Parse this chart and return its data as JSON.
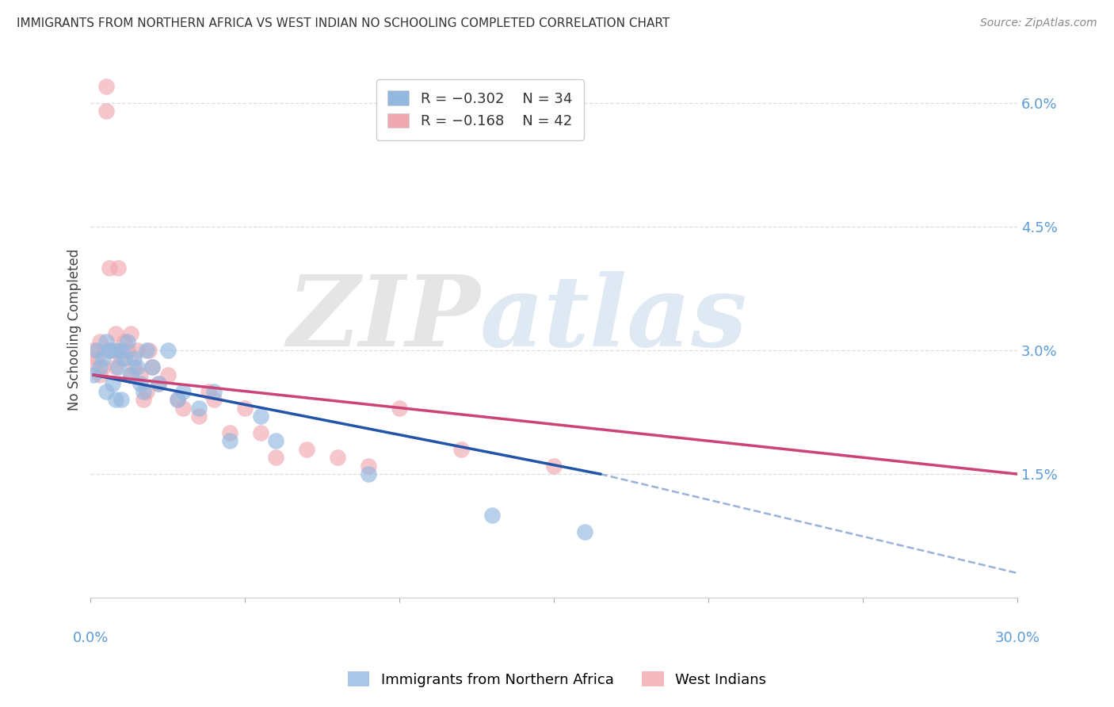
{
  "title": "IMMIGRANTS FROM NORTHERN AFRICA VS WEST INDIAN NO SCHOOLING COMPLETED CORRELATION CHART",
  "source": "Source: ZipAtlas.com",
  "ylabel": "No Schooling Completed",
  "xlim": [
    0.0,
    0.3
  ],
  "ylim": [
    0.0,
    0.065
  ],
  "legend_blue_r": "R = −0.302",
  "legend_blue_n": "N = 34",
  "legend_pink_r": "R = −0.168",
  "legend_pink_n": "N = 42",
  "blue_color": "#92b8e0",
  "pink_color": "#f0a8b0",
  "blue_line_color": "#2255aa",
  "pink_line_color": "#cc4477",
  "blue_scatter_x": [
    0.001,
    0.002,
    0.003,
    0.004,
    0.005,
    0.005,
    0.006,
    0.007,
    0.008,
    0.008,
    0.009,
    0.01,
    0.01,
    0.011,
    0.012,
    0.013,
    0.014,
    0.015,
    0.016,
    0.017,
    0.018,
    0.02,
    0.022,
    0.025,
    0.028,
    0.03,
    0.035,
    0.04,
    0.045,
    0.055,
    0.06,
    0.09,
    0.13,
    0.16
  ],
  "blue_scatter_y": [
    0.027,
    0.03,
    0.028,
    0.029,
    0.031,
    0.025,
    0.03,
    0.026,
    0.03,
    0.024,
    0.028,
    0.03,
    0.024,
    0.029,
    0.031,
    0.027,
    0.029,
    0.028,
    0.026,
    0.025,
    0.03,
    0.028,
    0.026,
    0.03,
    0.024,
    0.025,
    0.023,
    0.025,
    0.019,
    0.022,
    0.019,
    0.015,
    0.01,
    0.008
  ],
  "pink_scatter_x": [
    0.001,
    0.001,
    0.002,
    0.003,
    0.003,
    0.004,
    0.005,
    0.005,
    0.006,
    0.007,
    0.008,
    0.008,
    0.009,
    0.01,
    0.011,
    0.012,
    0.013,
    0.013,
    0.014,
    0.015,
    0.016,
    0.017,
    0.018,
    0.019,
    0.02,
    0.022,
    0.025,
    0.028,
    0.03,
    0.035,
    0.038,
    0.04,
    0.045,
    0.05,
    0.055,
    0.06,
    0.07,
    0.08,
    0.09,
    0.1,
    0.12,
    0.15
  ],
  "pink_scatter_y": [
    0.03,
    0.028,
    0.029,
    0.031,
    0.027,
    0.028,
    0.062,
    0.059,
    0.04,
    0.03,
    0.032,
    0.028,
    0.04,
    0.029,
    0.031,
    0.03,
    0.027,
    0.032,
    0.028,
    0.03,
    0.027,
    0.024,
    0.025,
    0.03,
    0.028,
    0.026,
    0.027,
    0.024,
    0.023,
    0.022,
    0.025,
    0.024,
    0.02,
    0.023,
    0.02,
    0.017,
    0.018,
    0.017,
    0.016,
    0.023,
    0.018,
    0.016
  ],
  "blue_line_x_start": 0.001,
  "blue_line_x_solid_end": 0.165,
  "blue_line_x_end": 0.3,
  "blue_line_y_start": 0.027,
  "blue_line_y_solid_end": 0.015,
  "blue_line_y_end": 0.003,
  "pink_line_x_start": 0.001,
  "pink_line_x_end": 0.3,
  "pink_line_y_start": 0.027,
  "pink_line_y_end": 0.015,
  "watermark_zip": "ZIP",
  "watermark_atlas": "atlas",
  "grid_color": "#dddddd",
  "background_color": "#ffffff",
  "ytick_positions": [
    0.015,
    0.03,
    0.045,
    0.06
  ],
  "ytick_labels": [
    "1.5%",
    "3.0%",
    "4.5%",
    "6.0%"
  ]
}
